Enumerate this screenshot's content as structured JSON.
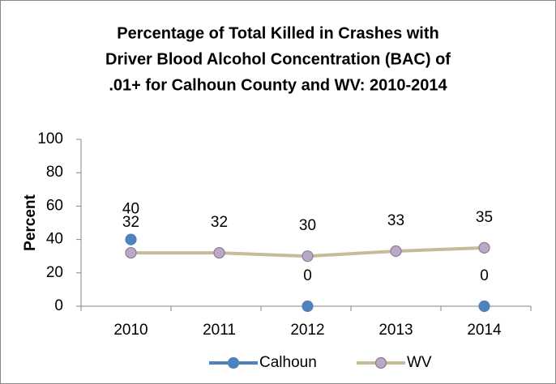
{
  "chart_data": {
    "type": "line",
    "title": [
      "Percentage of Total Killed in Crashes with",
      "Driver Blood Alcohol Concentration (BAC) of",
      ".01+ for Calhoun County and WV: 2010-2014"
    ],
    "y_label": "Percent",
    "categories": [
      "2010",
      "2011",
      "2012",
      "2013",
      "2014"
    ],
    "series": [
      {
        "name": "Calhoun",
        "color": "#4f81bd",
        "marker_color": "#4f81bd",
        "values": [
          40,
          null,
          0,
          null,
          0
        ]
      },
      {
        "name": "WV",
        "color": "#c4bd97",
        "marker_color": "#b9a8c8",
        "values": [
          32,
          32,
          30,
          33,
          35
        ]
      }
    ],
    "ylim": [
      0,
      100
    ],
    "yticks": [
      0,
      20,
      40,
      60,
      80,
      100
    ],
    "grid": false,
    "legend": "bottom"
  }
}
